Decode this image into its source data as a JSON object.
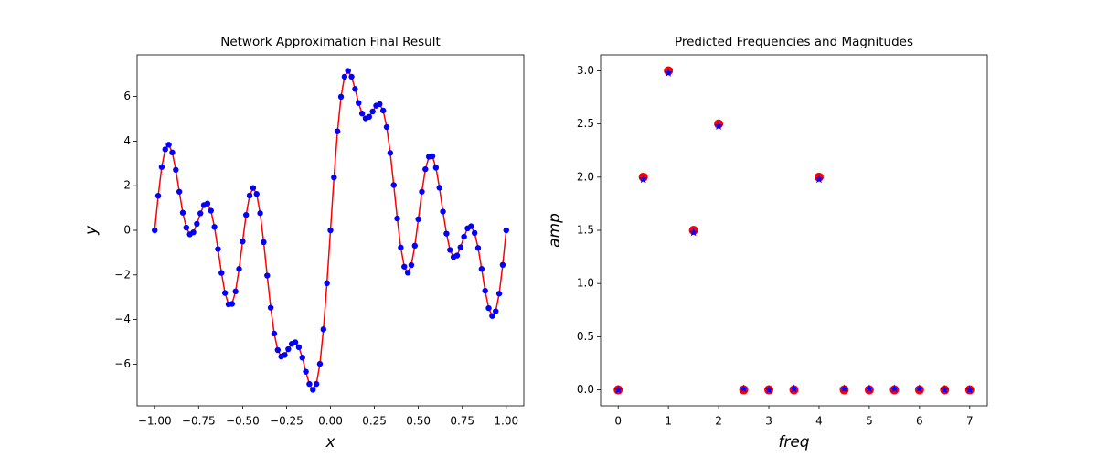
{
  "chart_data": [
    {
      "type": "line",
      "title": "Network Approximation Final Result",
      "xlabel": "x",
      "ylabel": "y",
      "x": [
        -1,
        -0.98,
        -0.96,
        -0.94,
        -0.92,
        -0.9,
        -0.88,
        -0.86,
        -0.84,
        -0.82,
        -0.8,
        -0.78,
        -0.76,
        -0.74,
        -0.72,
        -0.7,
        -0.68,
        -0.66,
        -0.64,
        -0.62,
        -0.6,
        -0.58,
        -0.56,
        -0.54,
        -0.52,
        -0.5,
        -0.48,
        -0.46,
        -0.44,
        -0.42,
        -0.4,
        -0.38,
        -0.36,
        -0.34,
        -0.32,
        -0.3,
        -0.28,
        -0.26,
        -0.24,
        -0.22,
        -0.2,
        -0.18,
        -0.16,
        -0.14,
        -0.12,
        -0.1,
        -0.08,
        -0.06,
        -0.04,
        -0.02,
        0,
        0.02,
        0.04,
        0.06,
        0.08,
        0.1,
        0.12,
        0.14,
        0.16,
        0.18,
        0.2,
        0.22,
        0.24,
        0.26,
        0.28,
        0.3,
        0.32,
        0.34,
        0.36,
        0.38,
        0.4,
        0.42,
        0.44,
        0.46,
        0.48,
        0.5,
        0.52,
        0.54,
        0.56,
        0.58,
        0.6,
        0.62,
        0.64,
        0.66,
        0.68,
        0.7,
        0.72,
        0.74,
        0.76,
        0.78,
        0.8,
        0.82,
        0.84,
        0.86,
        0.88,
        0.9,
        0.92,
        0.94,
        0.96,
        0.98,
        1
      ],
      "series": [
        {
          "color": "#ff0000",
          "marker_color": "#0000ff",
          "values": [
            0,
            1.55,
            2.84,
            3.63,
            3.84,
            3.49,
            2.71,
            1.73,
            0.79,
            0.12,
            -0.18,
            -0.09,
            0.29,
            0.76,
            1.13,
            1.2,
            0.88,
            0.15,
            -0.84,
            -1.91,
            -2.81,
            -3.32,
            -3.3,
            -2.74,
            -1.73,
            -0.5,
            0.69,
            1.56,
            1.9,
            1.63,
            0.77,
            -0.53,
            -2.03,
            -3.47,
            -4.63,
            -5.37,
            -5.66,
            -5.59,
            -5.33,
            -5.09,
            -5.02,
            -5.24,
            -5.71,
            -6.34,
            -6.89,
            -7.15,
            -6.89,
            -5.99,
            -4.44,
            -2.37,
            0,
            2.37,
            4.44,
            5.99,
            6.89,
            7.15,
            6.89,
            6.34,
            5.71,
            5.24,
            5.02,
            5.09,
            5.33,
            5.59,
            5.66,
            5.37,
            4.63,
            3.47,
            2.03,
            0.53,
            -0.77,
            -1.63,
            -1.9,
            -1.56,
            -0.69,
            0.5,
            1.73,
            2.74,
            3.3,
            3.32,
            2.81,
            1.91,
            0.84,
            -0.15,
            -0.88,
            -1.2,
            -1.13,
            -0.76,
            -0.29,
            0.09,
            0.18,
            -0.12,
            -0.79,
            -1.73,
            -2.71,
            -3.49,
            -3.84,
            -3.63,
            -2.84,
            -1.55,
            0
          ]
        }
      ],
      "xlim": [
        -1.1,
        1.1
      ],
      "ylim": [
        -7.87,
        7.87
      ],
      "xticks": [
        {
          "value": -1,
          "label": "−1.00"
        },
        {
          "value": -0.75,
          "label": "−0.75"
        },
        {
          "value": -0.5,
          "label": "−0.50"
        },
        {
          "value": -0.25,
          "label": "−0.25"
        },
        {
          "value": 0,
          "label": "0.00"
        },
        {
          "value": 0.25,
          "label": "0.25"
        },
        {
          "value": 0.5,
          "label": "0.50"
        },
        {
          "value": 0.75,
          "label": "0.75"
        },
        {
          "value": 1,
          "label": "1.00"
        }
      ],
      "yticks": [
        {
          "value": -6,
          "label": "−6"
        },
        {
          "value": -4,
          "label": "−4"
        },
        {
          "value": -2,
          "label": "−2"
        },
        0,
        2,
        4,
        6
      ]
    },
    {
      "type": "scatter",
      "title": "Predicted Frequencies and Magnitudes",
      "xlabel": "freq",
      "ylabel": "amp",
      "x": [
        0,
        0.5,
        1,
        1.5,
        2,
        2.5,
        3,
        3.5,
        4,
        4.5,
        5,
        5.5,
        6,
        6.5,
        7
      ],
      "series": [
        {
          "color": "#ff0000",
          "marker": "circle",
          "values": [
            0,
            2,
            3,
            1.5,
            2.5,
            0,
            0,
            0,
            2,
            0,
            0,
            0,
            0,
            0,
            0
          ]
        },
        {
          "color": "#0000ff",
          "marker": "star",
          "values": [
            0,
            1.98,
            2.98,
            1.48,
            2.48,
            0.01,
            0,
            0.01,
            1.98,
            0.01,
            0.01,
            0.01,
            0.01,
            0,
            0
          ]
        }
      ],
      "xlim": [
        -0.35,
        7.35
      ],
      "ylim": [
        -0.15,
        3.15
      ],
      "xticks": [
        0,
        1,
        2,
        3,
        4,
        5,
        6,
        7
      ],
      "yticks": [
        {
          "value": 0,
          "label": "0.0"
        },
        {
          "value": 0.5,
          "label": "0.5"
        },
        {
          "value": 1,
          "label": "1.0"
        },
        {
          "value": 1.5,
          "label": "1.5"
        },
        {
          "value": 2,
          "label": "2.0"
        },
        {
          "value": 2.5,
          "label": "2.5"
        },
        {
          "value": 3,
          "label": "3.0"
        }
      ]
    }
  ]
}
